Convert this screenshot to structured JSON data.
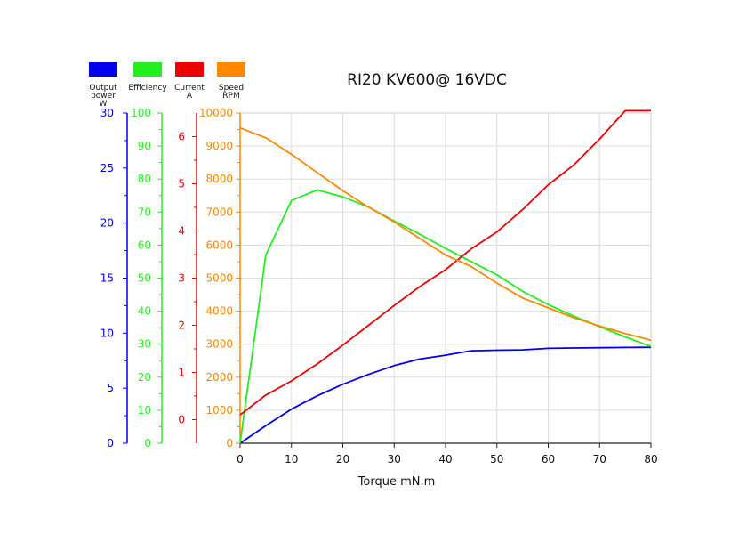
{
  "chart_data": {
    "type": "line",
    "title": "RI20 KV600@ 16VDC",
    "xlabel": "Torque mN.m",
    "x_ticks": [
      0,
      10,
      20,
      30,
      40,
      50,
      60,
      70,
      80
    ],
    "xlim": [
      0,
      80
    ],
    "grid": true,
    "legend_position": "top-left",
    "axes": [
      {
        "id": "power",
        "label": "Output power W",
        "color": "#0000ee",
        "ylim": [
          0,
          30
        ],
        "ticks": [
          0,
          5,
          10,
          15,
          20,
          25,
          30
        ]
      },
      {
        "id": "efficiency",
        "label": "Efficiency",
        "color": "#22ee22",
        "ylim": [
          0,
          100
        ],
        "ticks": [
          0,
          10,
          20,
          30,
          40,
          50,
          60,
          70,
          80,
          90,
          100
        ]
      },
      {
        "id": "current",
        "label": "Current A",
        "color": "#ee0000",
        "ylim": [
          -0.5,
          6.5
        ],
        "ticks": [
          0,
          1,
          2,
          3,
          4,
          5,
          6
        ]
      },
      {
        "id": "speed",
        "label": "Speed RPM",
        "color": "#ff8800",
        "ylim": [
          0,
          10000
        ],
        "ticks": [
          0,
          1000,
          2000,
          3000,
          4000,
          5000,
          6000,
          7000,
          8000,
          9000,
          10000
        ]
      }
    ],
    "legend": [
      {
        "label_lines": [
          "Output",
          "power",
          "W"
        ],
        "color": "#0000ee"
      },
      {
        "label_lines": [
          "Efficiency"
        ],
        "color": "#22ee22"
      },
      {
        "label_lines": [
          "Current",
          "A"
        ],
        "color": "#ee0000"
      },
      {
        "label_lines": [
          "Speed",
          "RPM"
        ],
        "color": "#ff8800"
      }
    ],
    "series": [
      {
        "name": "Output power",
        "axis": "power",
        "color": "#0000ee",
        "x": [
          0,
          5,
          10,
          15,
          20,
          25,
          30,
          35,
          40,
          45,
          50,
          55,
          60,
          65,
          70,
          75,
          80
        ],
        "y": [
          0,
          1.6,
          3.1,
          4.3,
          5.35,
          6.25,
          7.05,
          7.65,
          8.0,
          8.4,
          8.45,
          8.48,
          8.62,
          8.65,
          8.68,
          8.7,
          8.72
        ]
      },
      {
        "name": "Efficiency",
        "axis": "efficiency",
        "color": "#22ee22",
        "x": [
          0,
          5,
          10,
          15,
          20,
          25,
          30,
          35,
          40,
          45,
          50,
          55,
          60,
          65,
          70,
          75,
          80
        ],
        "y": [
          0,
          57,
          73.5,
          76.7,
          74.6,
          71.5,
          67.3,
          63.3,
          59,
          55,
          51,
          46,
          42,
          38.5,
          35.3,
          32.2,
          29.3
        ]
      },
      {
        "name": "Current",
        "axis": "current",
        "color": "#ee0000",
        "x": [
          0,
          5,
          10,
          15,
          20,
          25,
          30,
          35,
          40,
          45,
          50,
          55,
          60,
          65,
          70,
          75,
          80
        ],
        "y": [
          0.1,
          0.52,
          0.82,
          1.18,
          1.58,
          2.0,
          2.42,
          2.82,
          3.18,
          3.62,
          3.98,
          4.45,
          4.98,
          5.4,
          5.95,
          6.55,
          6.55
        ]
      },
      {
        "name": "Speed",
        "axis": "speed",
        "color": "#ff8800",
        "x": [
          0,
          5,
          10,
          15,
          20,
          25,
          30,
          35,
          40,
          45,
          50,
          55,
          60,
          65,
          70,
          75,
          80
        ],
        "y": [
          9550,
          9250,
          8750,
          8200,
          7650,
          7150,
          6700,
          6200,
          5700,
          5350,
          4850,
          4400,
          4100,
          3800,
          3550,
          3320,
          3120
        ]
      }
    ]
  }
}
